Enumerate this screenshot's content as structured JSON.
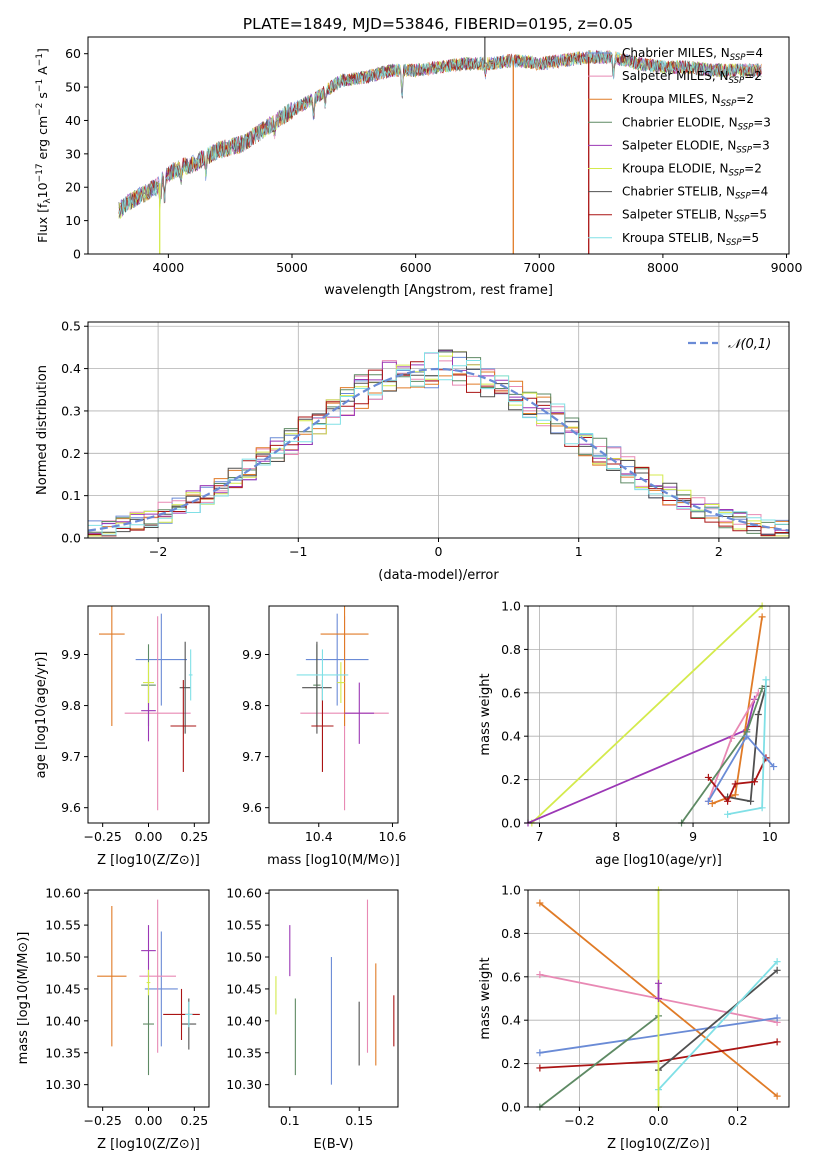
{
  "figure_title": "PLATE=1849, MJD=53846, FIBERID=0195, z=0.05",
  "colors": {
    "chabrier_miles": "#6a8bd6",
    "salpeter_miles": "#e889b4",
    "kroupa_miles": "#e07b27",
    "chabrier_elodie": "#5e8a64",
    "salpeter_elodie": "#9b37b5",
    "kroupa_elodie": "#d4ea4c",
    "chabrier_stelib": "#505050",
    "salpeter_stelib": "#aa1414",
    "kroupa_stelib": "#80e0e6"
  },
  "legend": [
    {
      "key": "chabrier_miles",
      "label": "Chabrier MILES, N",
      "sub": "SSP",
      "suffix": "=4"
    },
    {
      "key": "salpeter_miles",
      "label": "Salpeter MILES, N",
      "sub": "SSP",
      "suffix": "=2"
    },
    {
      "key": "kroupa_miles",
      "label": "Kroupa MILES, N",
      "sub": "SSP",
      "suffix": "=2"
    },
    {
      "key": "chabrier_elodie",
      "label": "Chabrier ELODIE, N",
      "sub": "SSP",
      "suffix": "=3"
    },
    {
      "key": "salpeter_elodie",
      "label": "Salpeter ELODIE, N",
      "sub": "SSP",
      "suffix": "=3"
    },
    {
      "key": "kroupa_elodie",
      "label": "Kroupa ELODIE, N",
      "sub": "SSP",
      "suffix": "=2"
    },
    {
      "key": "chabrier_stelib",
      "label": "Chabrier STELIB, N",
      "sub": "SSP",
      "suffix": "=4"
    },
    {
      "key": "salpeter_stelib",
      "label": "Salpeter STELIB, N",
      "sub": "SSP",
      "suffix": "=5"
    },
    {
      "key": "kroupa_stelib",
      "label": "Kroupa STELIB, N",
      "sub": "SSP",
      "suffix": "=5"
    }
  ],
  "chart_data": [
    {
      "id": "spectrum",
      "type": "line",
      "xlabel": "wavelength [Angstrom, rest frame]",
      "ylabel": "Flux [f_λ10^-17 erg cm^-2 s^-1 A^-1]",
      "xlim": [
        3350,
        9020
      ],
      "ylim": [
        0,
        65
      ],
      "xticks": [
        4000,
        5000,
        6000,
        7000,
        8000,
        9000
      ],
      "yticks": [
        0,
        10,
        20,
        30,
        40,
        50,
        60
      ],
      "continuum": [
        [
          3600,
          13
        ],
        [
          3700,
          16
        ],
        [
          3800,
          18
        ],
        [
          3900,
          20
        ],
        [
          4000,
          24
        ],
        [
          4100,
          26
        ],
        [
          4200,
          27
        ],
        [
          4400,
          31
        ],
        [
          4600,
          33
        ],
        [
          4800,
          38
        ],
        [
          5000,
          43
        ],
        [
          5200,
          47
        ],
        [
          5400,
          52
        ],
        [
          5600,
          53
        ],
        [
          5800,
          55
        ],
        [
          6000,
          55
        ],
        [
          6200,
          56
        ],
        [
          6400,
          57
        ],
        [
          6600,
          57
        ],
        [
          6800,
          58
        ],
        [
          7000,
          57
        ],
        [
          7200,
          58
        ],
        [
          7400,
          59
        ],
        [
          7600,
          59
        ],
        [
          7800,
          57
        ],
        [
          8000,
          56
        ],
        [
          8200,
          56
        ],
        [
          8400,
          55
        ],
        [
          8600,
          55
        ],
        [
          8800,
          55
        ]
      ],
      "range": [
        3600,
        8800
      ],
      "spikes": [
        {
          "x": 3930,
          "y": 0
        },
        {
          "x": 6790,
          "y": 0
        },
        {
          "x": 7400,
          "y": 0
        },
        {
          "x": 6560,
          "y": 65
        }
      ]
    },
    {
      "id": "residual",
      "type": "histogram",
      "xlabel": "(data-model)/error",
      "ylabel": "Normed distribution",
      "xlim": [
        -2.5,
        2.5
      ],
      "ylim": [
        0,
        0.51
      ],
      "xticks": [
        -2,
        -1,
        0,
        1,
        2
      ],
      "yticks": [
        0.0,
        0.1,
        0.2,
        0.3,
        0.4,
        0.5
      ],
      "reference": {
        "name": "𝒩(0,1)",
        "mean": 0,
        "sigma": 1
      },
      "bin_width": 0.1
    },
    {
      "id": "age_vs_z",
      "type": "scatter",
      "xlabel": "Z [log10(Z/Z⊙)]",
      "ylabel": "age  [log10(age/yr)]",
      "xlim": [
        -0.33,
        0.33
      ],
      "ylim": [
        9.57,
        9.995
      ],
      "xticks": [
        -0.25,
        0.0,
        0.25
      ],
      "yticks": [
        9.6,
        9.7,
        9.8,
        9.9
      ],
      "points": [
        {
          "key": "chabrier_miles",
          "x": 0.07,
          "y": 9.89,
          "xerr": 0.14,
          "yerr": 0.09
        },
        {
          "key": "salpeter_miles",
          "x": 0.05,
          "y": 9.785,
          "xerr": 0.18,
          "yerr": 0.19
        },
        {
          "key": "kroupa_miles",
          "x": -0.2,
          "y": 9.94,
          "xerr": 0.07,
          "yerr": 0.18
        },
        {
          "key": "chabrier_elodie",
          "x": 0.0,
          "y": 9.84,
          "xerr": 0.04,
          "yerr": 0.08
        },
        {
          "key": "salpeter_elodie",
          "x": 0.0,
          "y": 9.79,
          "xerr": 0.04,
          "yerr": 0.06
        },
        {
          "key": "kroupa_elodie",
          "x": 0.0,
          "y": 9.845,
          "xerr": 0.03,
          "yerr": 0.04
        },
        {
          "key": "chabrier_stelib",
          "x": 0.2,
          "y": 9.835,
          "xerr": 0.03,
          "yerr": 0.09
        },
        {
          "key": "salpeter_stelib",
          "x": 0.19,
          "y": 9.76,
          "xerr": 0.07,
          "yerr": 0.09
        },
        {
          "key": "kroupa_stelib",
          "x": 0.23,
          "y": 9.86,
          "xerr": 0.01,
          "yerr": 0.05
        }
      ]
    },
    {
      "id": "age_vs_mass",
      "type": "scatter",
      "xlabel": "mass [log10(M/M⊙)]",
      "ylabel": "",
      "xlim": [
        10.265,
        10.615
      ],
      "ylim": [
        9.57,
        9.995
      ],
      "xticks": [
        10.4,
        10.6
      ],
      "yticks": [
        9.6,
        9.7,
        9.8,
        9.9
      ],
      "points": [
        {
          "key": "chabrier_miles",
          "x": 10.45,
          "y": 9.89,
          "xerr": 0.085,
          "yerr": 0.09
        },
        {
          "key": "salpeter_miles",
          "x": 10.47,
          "y": 9.785,
          "xerr": 0.12,
          "yerr": 0.19
        },
        {
          "key": "kroupa_miles",
          "x": 10.47,
          "y": 9.94,
          "xerr": 0.065,
          "yerr": 0.18
        },
        {
          "key": "chabrier_elodie",
          "x": 10.395,
          "y": 9.84,
          "xerr": 0.01,
          "yerr": 0.08
        },
        {
          "key": "salpeter_elodie",
          "x": 10.51,
          "y": 9.785,
          "xerr": 0.04,
          "yerr": 0.06
        },
        {
          "key": "kroupa_elodie",
          "x": 10.46,
          "y": 9.845,
          "xerr": 0.01,
          "yerr": 0.04
        },
        {
          "key": "chabrier_stelib",
          "x": 10.395,
          "y": 9.835,
          "xerr": 0.04,
          "yerr": 0.09
        },
        {
          "key": "salpeter_stelib",
          "x": 10.41,
          "y": 9.76,
          "xerr": 0.03,
          "yerr": 0.09
        },
        {
          "key": "kroupa_stelib",
          "x": 10.41,
          "y": 9.86,
          "xerr": 0.07,
          "yerr": 0.05
        }
      ]
    },
    {
      "id": "weight_vs_age",
      "type": "line",
      "xlabel": "age  [log10(age/yr)]",
      "ylabel": "mass weight",
      "xlim": [
        6.85,
        10.25
      ],
      "ylim": [
        0,
        1
      ],
      "xticks": [
        7,
        8,
        9,
        10
      ],
      "yticks": [
        0.0,
        0.2,
        0.4,
        0.6,
        0.8,
        1.0
      ],
      "series": [
        {
          "key": "kroupa_elodie",
          "x": [
            6.9,
            9.9
          ],
          "y": [
            0,
            1.0
          ]
        },
        {
          "key": "salpeter_elodie",
          "x": [
            6.85,
            9.7,
            9.8
          ],
          "y": [
            0,
            0.43,
            0.57
          ]
        },
        {
          "key": "kroupa_miles",
          "x": [
            9.9,
            9.55,
            9.25
          ],
          "y": [
            0.95,
            0.13,
            0.09
          ]
        },
        {
          "key": "salpeter_miles",
          "x": [
            9.85,
            9.5,
            9.2
          ],
          "y": [
            0.6,
            0.39,
            0.1
          ]
        },
        {
          "key": "chabrier_elodie",
          "x": [
            8.85,
            9.7,
            9.9
          ],
          "y": [
            0,
            0.42,
            0.62
          ]
        },
        {
          "key": "chabrier_stelib",
          "x": [
            9.45,
            9.75,
            9.85,
            9.95
          ],
          "y": [
            0.12,
            0.1,
            0.5,
            0.63
          ]
        },
        {
          "key": "salpeter_stelib",
          "x": [
            9.2,
            9.45,
            9.55,
            9.8,
            9.95
          ],
          "y": [
            0.21,
            0.1,
            0.18,
            0.19,
            0.3
          ]
        },
        {
          "key": "kroupa_stelib",
          "x": [
            9.45,
            9.9,
            9.95
          ],
          "y": [
            0.04,
            0.07,
            0.66
          ]
        },
        {
          "key": "chabrier_miles",
          "x": [
            9.2,
            9.7,
            10.05
          ],
          "y": [
            0.1,
            0.4,
            0.26
          ]
        }
      ]
    },
    {
      "id": "mass_vs_z",
      "type": "scatter",
      "xlabel": "Z [log10(Z/Z⊙)]",
      "ylabel": "mass [log10(M/M⊙)]",
      "xlim": [
        -0.33,
        0.33
      ],
      "ylim": [
        10.265,
        10.605
      ],
      "xticks": [
        -0.25,
        0.0,
        0.25
      ],
      "yticks": [
        10.3,
        10.35,
        10.4,
        10.45,
        10.5,
        10.55,
        10.6
      ],
      "points": [
        {
          "key": "chabrier_miles",
          "x": 0.07,
          "y": 10.45,
          "xerr": 0.09,
          "yerr": 0.09
        },
        {
          "key": "salpeter_miles",
          "x": 0.05,
          "y": 10.47,
          "xerr": 0.1,
          "yerr": 0.12
        },
        {
          "key": "kroupa_miles",
          "x": -0.2,
          "y": 10.47,
          "xerr": 0.08,
          "yerr": 0.11
        },
        {
          "key": "chabrier_elodie",
          "x": 0.0,
          "y": 10.395,
          "xerr": 0.03,
          "yerr": 0.08
        },
        {
          "key": "salpeter_elodie",
          "x": 0.0,
          "y": 10.51,
          "xerr": 0.04,
          "yerr": 0.04
        },
        {
          "key": "kroupa_elodie",
          "x": 0.0,
          "y": 10.46,
          "xerr": 0.01,
          "yerr": 0.02
        },
        {
          "key": "chabrier_stelib",
          "x": 0.22,
          "y": 10.395,
          "xerr": 0.04,
          "yerr": 0.04
        },
        {
          "key": "salpeter_stelib",
          "x": 0.18,
          "y": 10.41,
          "xerr": 0.1,
          "yerr": 0.04
        },
        {
          "key": "kroupa_stelib",
          "x": 0.22,
          "y": 10.41,
          "xerr": 0.02,
          "yerr": 0.02
        }
      ]
    },
    {
      "id": "mass_vs_ebv",
      "type": "scatter",
      "xlabel": "E(B-V)",
      "ylabel": "",
      "xlim": [
        0.085,
        0.178
      ],
      "ylim": [
        10.265,
        10.605
      ],
      "xticks": [
        0.1,
        0.15
      ],
      "yticks": [
        10.3,
        10.35,
        10.4,
        10.45,
        10.5,
        10.55,
        10.6
      ],
      "points": [
        {
          "key": "kroupa_elodie",
          "x": 0.09,
          "y": 10.44,
          "xerr": 0,
          "yerr": 0.03
        },
        {
          "key": "chabrier_elodie",
          "x": 0.104,
          "y": 10.375,
          "xerr": 0,
          "yerr": 0.06
        },
        {
          "key": "salpeter_elodie",
          "x": 0.1,
          "y": 10.51,
          "xerr": 0,
          "yerr": 0.04
        },
        {
          "key": "chabrier_miles",
          "x": 0.13,
          "y": 10.4,
          "xerr": 0,
          "yerr": 0.1
        },
        {
          "key": "chabrier_stelib",
          "x": 0.15,
          "y": 10.38,
          "xerr": 0,
          "yerr": 0.05
        },
        {
          "key": "salpeter_miles",
          "x": 0.156,
          "y": 10.47,
          "xerr": 0,
          "yerr": 0.12
        },
        {
          "key": "kroupa_miles",
          "x": 0.162,
          "y": 10.41,
          "xerr": 0,
          "yerr": 0.08
        },
        {
          "key": "salpeter_stelib",
          "x": 0.175,
          "y": 10.4,
          "xerr": 0,
          "yerr": 0.04
        }
      ]
    },
    {
      "id": "weight_vs_z",
      "type": "line",
      "xlabel": "Z [log10(Z/Z⊙)]",
      "ylabel": "mass weight",
      "xlim": [
        -0.33,
        0.33
      ],
      "ylim": [
        0,
        1
      ],
      "xticks": [
        -0.2,
        0.0,
        0.2
      ],
      "yticks": [
        0.0,
        0.2,
        0.4,
        0.6,
        0.8,
        1.0
      ],
      "series": [
        {
          "key": "kroupa_miles",
          "x": [
            -0.3,
            0.3
          ],
          "y": [
            0.94,
            0.05
          ]
        },
        {
          "key": "salpeter_miles",
          "x": [
            -0.3,
            0.3
          ],
          "y": [
            0.61,
            0.39
          ]
        },
        {
          "key": "chabrier_miles",
          "x": [
            -0.3,
            0.3
          ],
          "y": [
            0.25,
            0.41
          ]
        },
        {
          "key": "salpeter_stelib",
          "x": [
            -0.3,
            0.0,
            0.3
          ],
          "y": [
            0.18,
            0.21,
            0.3
          ]
        },
        {
          "key": "chabrier_elodie",
          "x": [
            -0.3,
            0.0
          ],
          "y": [
            0.0,
            0.42
          ]
        },
        {
          "key": "chabrier_stelib",
          "x": [
            0.0,
            0.3
          ],
          "y": [
            0.17,
            0.63
          ]
        },
        {
          "key": "kroupa_stelib",
          "x": [
            0.0,
            0.3
          ],
          "y": [
            0.08,
            0.67
          ]
        },
        {
          "key": "kroupa_elodie",
          "x": [
            0.0,
            0.0
          ],
          "y": [
            0.0,
            1.0
          ]
        },
        {
          "key": "salpeter_elodie",
          "x": [
            0.0,
            0.0
          ],
          "y": [
            0.5,
            0.57
          ]
        }
      ]
    }
  ]
}
